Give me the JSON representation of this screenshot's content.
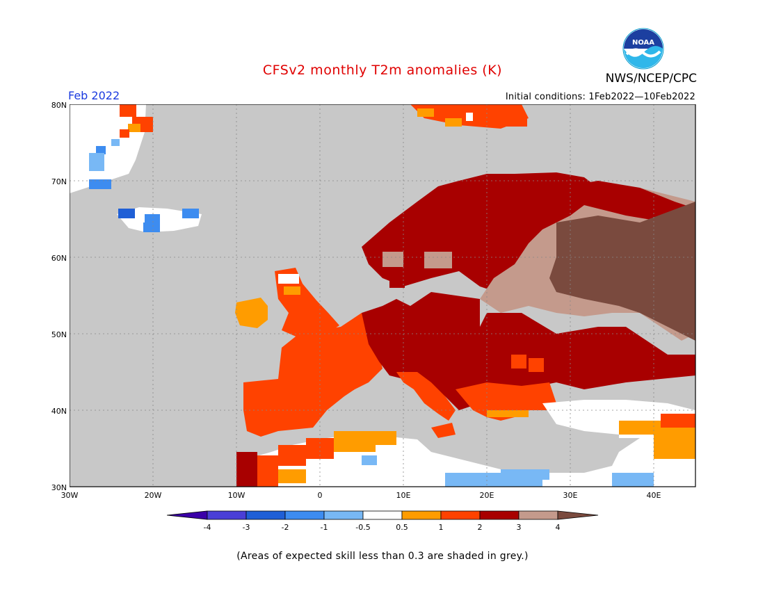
{
  "title": "CFSv2 monthly T2m anomalies (K)",
  "agency": "NWS/NCEP/CPC",
  "logo_text": "NOAA",
  "month": "Feb 2022",
  "initial_conditions": "Initial conditions: 1Feb2022—10Feb2022",
  "footnote": "(Areas of expected skill less than 0.3 are shaded in grey.)",
  "map": {
    "lon_range": [
      -30,
      45
    ],
    "lat_range": [
      30,
      80
    ],
    "lat_labels": [
      "80N",
      "70N",
      "60N",
      "50N",
      "40N",
      "30N"
    ],
    "lon_labels": [
      "30W",
      "20W",
      "10W",
      "0",
      "10E",
      "20E",
      "30E",
      "40E"
    ],
    "no_skill_color": "#c8c8c8",
    "gridlines": "dotted"
  },
  "legend": {
    "tick_labels": [
      "-4",
      "-3",
      "-2",
      "-1",
      "-0.5",
      "0.5",
      "1",
      "2",
      "3",
      "4"
    ],
    "colors": [
      "#3b00a8",
      "#4a3fd6",
      "#1f5fd6",
      "#3d8cf0",
      "#78b8f5",
      "#ffffff",
      "#ff9c00",
      "#ff4200",
      "#a80000",
      "#c49a8c",
      "#7a4a3e"
    ]
  }
}
